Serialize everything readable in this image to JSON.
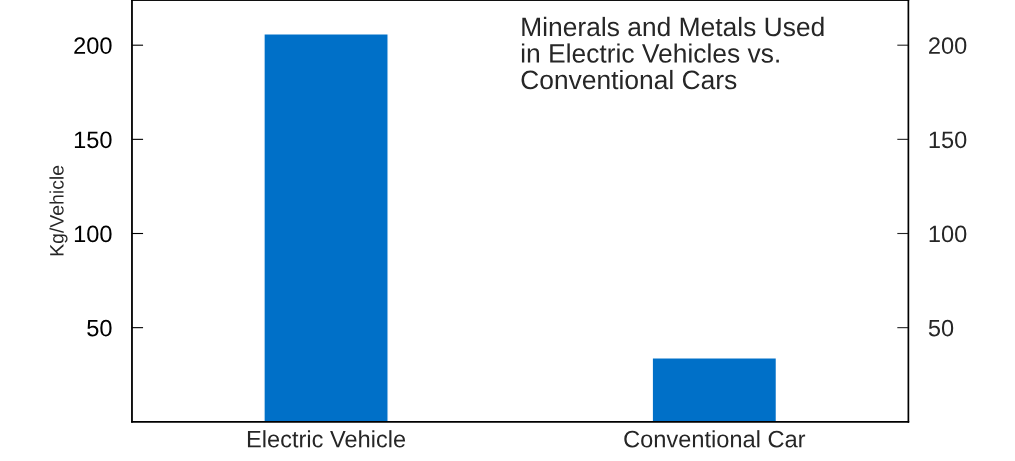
{
  "chart_data": {
    "type": "bar",
    "title": "Minerals and Metals Used\nin Electric Vehicles vs.\nConventional Cars",
    "categories": [
      "Electric Vehicle",
      "Conventional Car"
    ],
    "values": [
      206,
      34
    ],
    "color": "#0070c8",
    "ylabel": "Kg/Vehicle",
    "ylim": [
      0,
      224
    ],
    "yticks": [
      50,
      100,
      150,
      200
    ],
    "y2lim": [
      0,
      224
    ],
    "y2ticks": [
      50,
      100,
      150,
      200
    ],
    "grid": false,
    "legend": false
  }
}
